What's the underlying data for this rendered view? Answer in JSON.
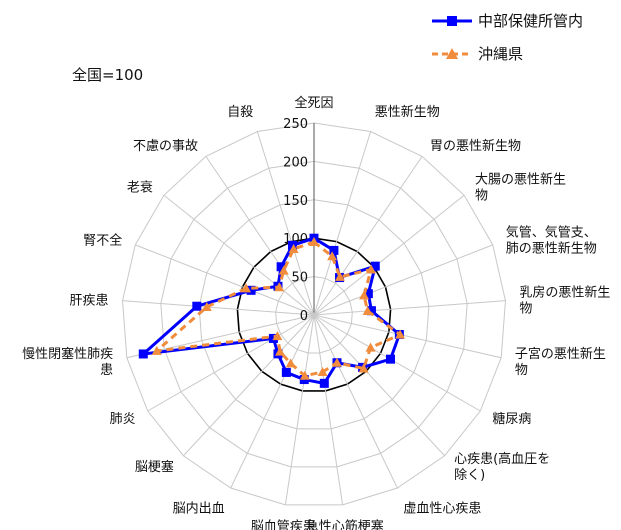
{
  "chart_data": {
    "type": "radar",
    "note": "全国=100",
    "axes": [
      "全死因",
      "悪性新生物",
      "胃の悪性新生物",
      "大腸の悪性新生\n物",
      "気管、気管支、\n肺の悪性新生物",
      "乳房の悪性新生\n物",
      "子宮の悪性新生\n物",
      "糖尿病",
      "心疾患(高血圧を\n除く)",
      "虚血性心疾患",
      "急性心筋梗塞",
      "脳血管疾患",
      "脳内出血",
      "脳梗塞",
      "肺炎",
      "慢性閉塞性肺疾\n患",
      "肝疾患",
      "腎不全",
      "老衰",
      "不慮の事故",
      "自殺"
    ],
    "rlim": [
      0,
      250
    ],
    "rticks": [
      0,
      50,
      100,
      150,
      200,
      250
    ],
    "series": [
      {
        "name": "中部保健所管内",
        "color": "#0000ff",
        "marker": "square",
        "line": "solid",
        "values": [
          100,
          88,
          59,
          102,
          76,
          75,
          114,
          115,
          93,
          69,
          90,
          85,
          83,
          69,
          61,
          228,
          153,
          88,
          60,
          76,
          95
        ]
      },
      {
        "name": "沖縄県",
        "color": "#f08c3c",
        "marker": "triangle",
        "line": "dashed",
        "values": [
          95,
          80,
          60,
          95,
          70,
          70,
          115,
          85,
          95,
          69,
          75,
          80,
          70,
          65,
          55,
          210,
          140,
          95,
          58,
          70,
          90
        ]
      }
    ]
  }
}
